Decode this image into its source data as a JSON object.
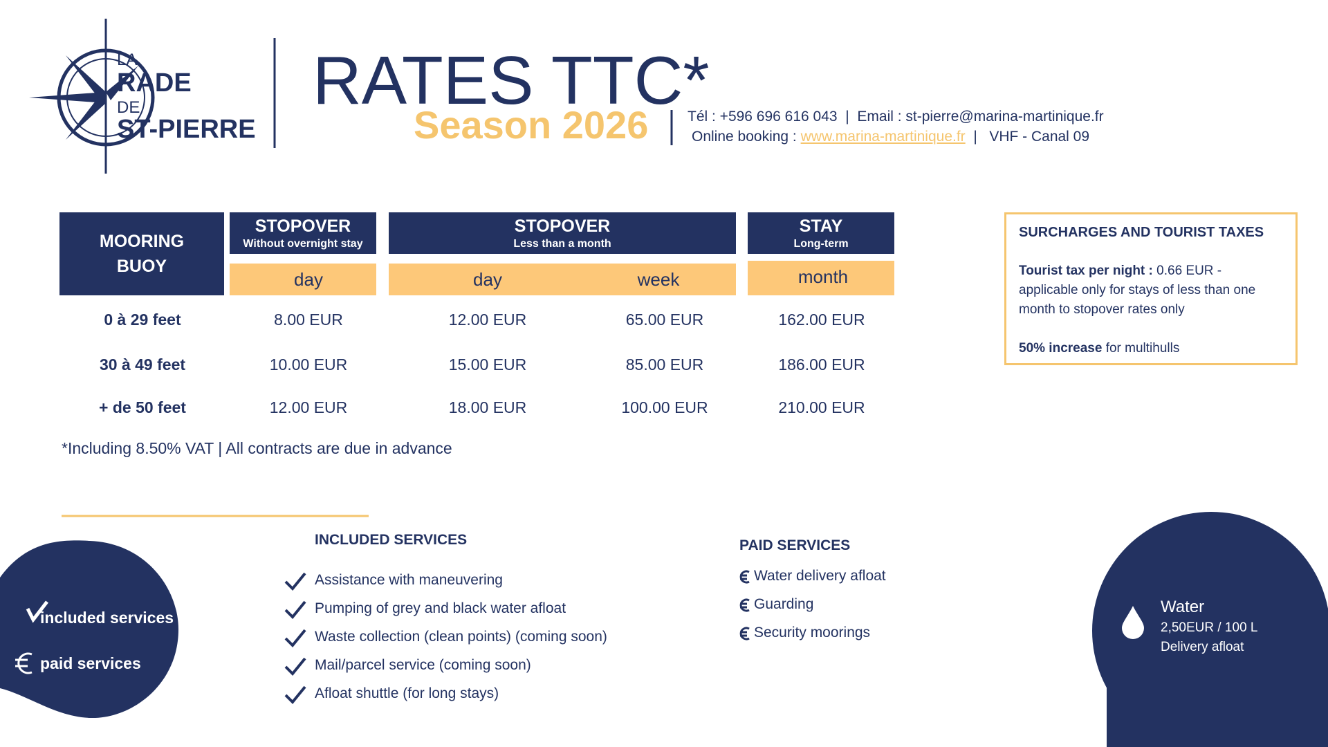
{
  "logo": {
    "line1": "LA",
    "line2": "RADE",
    "line3": "DE",
    "line4": "ST-PIERRE"
  },
  "header": {
    "title": "RATES TTC*",
    "season": "Season 2026",
    "contact": "Tél : +596 696 616 043  |  Email : st-pierre@marina-martinique.fr",
    "booking_label": "Online booking : ",
    "booking_link": "www.marina-martinique.fr",
    "vhf": "  |   VHF - Canal 09"
  },
  "table": {
    "corner": "MOORING BUOY",
    "groups": [
      {
        "title": "STOPOVER",
        "subtitle": "Without overnight stay",
        "units": [
          "day"
        ]
      },
      {
        "title": "STOPOVER",
        "subtitle": "Less than a month",
        "units": [
          "day",
          "week"
        ]
      },
      {
        "title": "STAY",
        "subtitle": "Long-term",
        "units": [
          "month"
        ]
      }
    ],
    "rows": [
      {
        "size": "0 à 29 feet",
        "values": [
          "8.00 EUR",
          "12.00 EUR",
          "65.00 EUR",
          "162.00 EUR"
        ]
      },
      {
        "size": "30 à 49 feet",
        "values": [
          "10.00 EUR",
          "15.00 EUR",
          "85.00 EUR",
          "186.00 EUR"
        ]
      },
      {
        "size": "+ de 50 feet",
        "values": [
          "12.00 EUR",
          "18.00 EUR",
          "100.00 EUR",
          "210.00 EUR"
        ]
      }
    ]
  },
  "footnote": "*Including 8.50% VAT | All contracts are due in advance",
  "surcharges": {
    "title": "SURCHARGES AND TOURIST TAXES",
    "tax_label": "Tourist tax per night :",
    "tax_text": " 0.66 EUR - applicable only for stays of less than one month to stopover rates only",
    "increase_label": "50% increase",
    "increase_text": " for multihulls"
  },
  "included": {
    "title": "INCLUDED SERVICES",
    "items": [
      "Assistance with maneuvering",
      "Pumping of grey and black water afloat",
      "Waste collection (clean points) (coming soon)",
      "Mail/parcel service (coming soon)",
      "Afloat shuttle (for long stays)"
    ]
  },
  "paid": {
    "title": "PAID SERVICES",
    "items": [
      "Water delivery afloat",
      "Guarding",
      "Security moorings"
    ]
  },
  "legend": {
    "included": "included services",
    "paid": "paid services"
  },
  "water": {
    "title": "Water",
    "price": "2,50EUR / 100 L",
    "note": "Delivery afloat"
  }
}
